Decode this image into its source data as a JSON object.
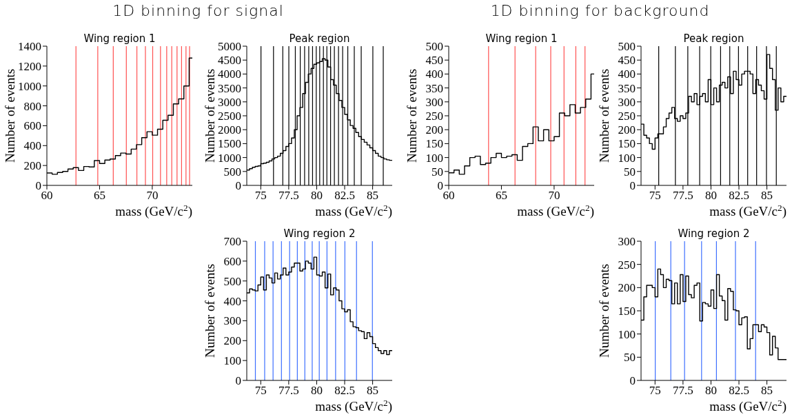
{
  "chart_data": [
    {
      "type": "histogram",
      "title": "Wing region 1",
      "xlabel": "mass (GeV/c$^{2}$)",
      "ylabel": "Number of events",
      "annotations": [
        "1D binning for signal"
      ],
      "color": "#000000",
      "bins": [
        60,
        60.5,
        61,
        61.5,
        62,
        62.5,
        63,
        63.5,
        64,
        64.5,
        65,
        65.5,
        66,
        66.5,
        67,
        67.5,
        68,
        68.5,
        69,
        69.5,
        70,
        70.5,
        71,
        71.5,
        72,
        72.5,
        73,
        73.5,
        73.8
      ],
      "values": [
        125,
        112,
        130,
        140,
        165,
        178,
        150,
        190,
        185,
        250,
        220,
        255,
        265,
        300,
        325,
        315,
        365,
        410,
        480,
        540,
        505,
        565,
        655,
        705,
        820,
        870,
        1000,
        1280
      ],
      "xlim": [
        60,
        73.8
      ],
      "xticks": [
        60,
        65,
        70
      ],
      "ylim": [
        0,
        1400
      ],
      "yticks": [
        0,
        200,
        400,
        600,
        800,
        1000,
        1200,
        1400
      ],
      "ref_lines": [
        {
          "axis": "x",
          "value": 62.76,
          "color": "#ff5050"
        },
        {
          "axis": "x",
          "value": 64.83,
          "color": "#ff5050"
        },
        {
          "axis": "x",
          "value": 66.3,
          "color": "#ff5050"
        },
        {
          "axis": "x",
          "value": 67.54,
          "color": "#ff5050"
        },
        {
          "axis": "x",
          "value": 68.54,
          "color": "#ff5050"
        },
        {
          "axis": "x",
          "value": 69.35,
          "color": "#ff5050"
        },
        {
          "axis": "x",
          "value": 70.04,
          "color": "#ff5050"
        },
        {
          "axis": "x",
          "value": 70.78,
          "color": "#ff5050"
        },
        {
          "axis": "x",
          "value": 71.37,
          "color": "#ff5050"
        },
        {
          "axis": "x",
          "value": 71.85,
          "color": "#ff5050"
        },
        {
          "axis": "x",
          "value": 72.35,
          "color": "#ff5050"
        },
        {
          "axis": "x",
          "value": 72.78,
          "color": "#ff5050"
        },
        {
          "axis": "x",
          "value": 73.2,
          "color": "#ff5050"
        },
        {
          "axis": "x",
          "value": 73.54,
          "color": "#ff5050"
        }
      ]
    },
    {
      "type": "histogram",
      "title": "Peak region",
      "xlabel": "mass (GeV/c$^{2}$)",
      "ylabel": "Number of events",
      "color": "#000000",
      "bins": [
        73.75,
        74,
        74.25,
        74.5,
        74.75,
        75,
        75.25,
        75.5,
        75.75,
        76,
        76.25,
        76.5,
        76.75,
        77,
        77.25,
        77.5,
        77.75,
        78,
        78.25,
        78.5,
        78.75,
        79,
        79.25,
        79.5,
        79.75,
        80,
        80.25,
        80.5,
        80.75,
        81,
        81.25,
        81.5,
        81.75,
        82,
        82.25,
        82.5,
        82.75,
        83,
        83.25,
        83.5,
        83.75,
        84,
        84.25,
        84.5,
        84.75,
        85,
        85.25,
        85.5,
        85.75,
        86,
        86.25,
        86.5,
        86.75
      ],
      "values": [
        550,
        600,
        650,
        680,
        700,
        780,
        800,
        830,
        880,
        950,
        1000,
        1050,
        1150,
        1250,
        1400,
        1500,
        1700,
        2000,
        2500,
        2800,
        3300,
        3700,
        4000,
        4200,
        4350,
        4400,
        4450,
        4550,
        4500,
        4250,
        3800,
        3600,
        3300,
        3050,
        2800,
        2550,
        2350,
        2150,
        2050,
        1900,
        1750,
        1650,
        1550,
        1450,
        1350,
        1250,
        1150,
        1050,
        1000,
        950,
        920,
        900
      ],
      "xlim": [
        73.75,
        86.75
      ],
      "xticks": [
        75,
        77.5,
        80,
        82.5,
        85
      ],
      "ylim": [
        0,
        5000
      ],
      "yticks": [
        0,
        500,
        1000,
        1500,
        2000,
        2500,
        3000,
        3500,
        4000,
        4500,
        5000
      ],
      "ref_lines": [
        {
          "axis": "x",
          "value": 75.02,
          "color": "#000000"
        },
        {
          "axis": "x",
          "value": 76.14,
          "color": "#000000"
        },
        {
          "axis": "x",
          "value": 76.97,
          "color": "#000000"
        },
        {
          "axis": "x",
          "value": 77.51,
          "color": "#000000"
        },
        {
          "axis": "x",
          "value": 78.09,
          "color": "#000000"
        },
        {
          "axis": "x",
          "value": 78.53,
          "color": "#000000"
        },
        {
          "axis": "x",
          "value": 78.92,
          "color": "#000000"
        },
        {
          "axis": "x",
          "value": 79.29,
          "color": "#000000"
        },
        {
          "axis": "x",
          "value": 79.63,
          "color": "#000000"
        },
        {
          "axis": "x",
          "value": 79.96,
          "color": "#000000"
        },
        {
          "axis": "x",
          "value": 80.27,
          "color": "#000000"
        },
        {
          "axis": "x",
          "value": 80.6,
          "color": "#000000"
        },
        {
          "axis": "x",
          "value": 80.91,
          "color": "#000000"
        },
        {
          "axis": "x",
          "value": 81.24,
          "color": "#000000"
        },
        {
          "axis": "x",
          "value": 81.58,
          "color": "#000000"
        },
        {
          "axis": "x",
          "value": 81.95,
          "color": "#000000"
        },
        {
          "axis": "x",
          "value": 82.32,
          "color": "#000000"
        },
        {
          "axis": "x",
          "value": 82.78,
          "color": "#000000"
        },
        {
          "axis": "x",
          "value": 83.36,
          "color": "#000000"
        },
        {
          "axis": "x",
          "value": 83.98,
          "color": "#000000"
        },
        {
          "axis": "x",
          "value": 85.02,
          "color": "#000000"
        },
        {
          "axis": "x",
          "value": 85.95,
          "color": "#000000"
        }
      ]
    },
    {
      "type": "histogram",
      "title": "Wing region 1",
      "xlabel": "mass (GeV/c$^{2}$)",
      "ylabel": "Number of events",
      "annotations": [
        "1D binning for background"
      ],
      "color": "#000000",
      "bins": [
        60,
        60.5,
        61,
        61.5,
        62,
        62.5,
        63,
        63.5,
        64,
        64.5,
        65,
        65.5,
        66,
        66.5,
        67,
        67.5,
        68,
        68.5,
        69,
        69.5,
        70,
        70.5,
        71,
        71.5,
        72,
        72.5,
        73,
        73.5,
        73.8
      ],
      "values": [
        45,
        55,
        40,
        70,
        100,
        105,
        75,
        80,
        100,
        115,
        100,
        105,
        110,
        90,
        140,
        150,
        210,
        160,
        200,
        160,
        175,
        260,
        250,
        290,
        260,
        280,
        310,
        400
      ],
      "xlim": [
        60,
        73.8
      ],
      "xticks": [
        60,
        65,
        70
      ],
      "ylim": [
        0,
        500
      ],
      "yticks": [
        0,
        50,
        100,
        150,
        200,
        250,
        300,
        350,
        400,
        450,
        500
      ],
      "ref_lines": [
        {
          "axis": "x",
          "value": 63.78,
          "color": "#ff5050"
        },
        {
          "axis": "x",
          "value": 66.29,
          "color": "#ff5050"
        },
        {
          "axis": "x",
          "value": 68.25,
          "color": "#ff5050"
        },
        {
          "axis": "x",
          "value": 69.68,
          "color": "#ff5050"
        },
        {
          "axis": "x",
          "value": 70.94,
          "color": "#ff5050"
        },
        {
          "axis": "x",
          "value": 72.06,
          "color": "#ff5050"
        },
        {
          "axis": "x",
          "value": 72.93,
          "color": "#ff5050"
        }
      ]
    },
    {
      "type": "histogram",
      "title": "Peak region",
      "xlabel": "mass (GeV/c$^{2}$)",
      "ylabel": "Number of events",
      "color": "#000000",
      "bins": [
        73.75,
        74,
        74.25,
        74.5,
        74.75,
        75,
        75.25,
        75.5,
        75.75,
        76,
        76.25,
        76.5,
        76.75,
        77,
        77.25,
        77.5,
        77.75,
        78,
        78.25,
        78.5,
        78.75,
        79,
        79.25,
        79.5,
        79.75,
        80,
        80.25,
        80.5,
        80.75,
        81,
        81.25,
        81.5,
        81.75,
        82,
        82.25,
        82.5,
        82.75,
        83,
        83.25,
        83.5,
        83.75,
        84,
        84.25,
        84.5,
        84.75,
        85,
        85.25,
        85.5,
        85.75,
        86,
        86.25,
        86.5,
        86.75
      ],
      "values": [
        220,
        180,
        170,
        150,
        130,
        170,
        185,
        185,
        210,
        240,
        260,
        280,
        240,
        230,
        250,
        240,
        260,
        320,
        300,
        330,
        290,
        320,
        330,
        300,
        380,
        290,
        350,
        300,
        360,
        370,
        350,
        390,
        330,
        410,
        380,
        360,
        400,
        410,
        410,
        400,
        330,
        380,
        360,
        340,
        310,
        470,
        420,
        380,
        270,
        350,
        300,
        320
      ],
      "xlim": [
        73.75,
        86.75
      ],
      "xticks": [
        75,
        77.5,
        80,
        82.5,
        85
      ],
      "ylim": [
        0,
        500
      ],
      "yticks": [
        0,
        50,
        100,
        150,
        200,
        250,
        300,
        350,
        400,
        450,
        500
      ],
      "ref_lines": [
        {
          "axis": "x",
          "value": 75.33,
          "color": "#000000"
        },
        {
          "axis": "x",
          "value": 76.82,
          "color": "#000000"
        },
        {
          "axis": "x",
          "value": 77.93,
          "color": "#000000"
        },
        {
          "axis": "x",
          "value": 78.99,
          "color": "#000000"
        },
        {
          "axis": "x",
          "value": 79.98,
          "color": "#000000"
        },
        {
          "axis": "x",
          "value": 80.86,
          "color": "#000000"
        },
        {
          "axis": "x",
          "value": 81.68,
          "color": "#000000"
        },
        {
          "axis": "x",
          "value": 82.46,
          "color": "#000000"
        },
        {
          "axis": "x",
          "value": 83.28,
          "color": "#000000"
        },
        {
          "axis": "x",
          "value": 84.08,
          "color": "#000000"
        },
        {
          "axis": "x",
          "value": 84.96,
          "color": "#000000"
        },
        {
          "axis": "x",
          "value": 85.84,
          "color": "#000000"
        }
      ]
    },
    {
      "type": "histogram",
      "title": "Wing region 2",
      "xlabel": "mass (GeV/c$^{2}$)",
      "ylabel": "Number of events",
      "color": "#000000",
      "bins": [
        73.75,
        74,
        74.25,
        74.5,
        74.75,
        75,
        75.25,
        75.5,
        75.75,
        76,
        76.25,
        76.5,
        76.75,
        77,
        77.25,
        77.5,
        77.75,
        78,
        78.25,
        78.5,
        78.75,
        79,
        79.25,
        79.5,
        79.75,
        80,
        80.25,
        80.5,
        80.75,
        81,
        81.25,
        81.5,
        81.75,
        82,
        82.25,
        82.5,
        82.75,
        83,
        83.25,
        83.5,
        83.75,
        84,
        84.25,
        84.5,
        84.75,
        85,
        85.25,
        85.5,
        85.75,
        86,
        86.25,
        86.5,
        86.75
      ],
      "values": [
        440,
        460,
        455,
        450,
        480,
        520,
        455,
        530,
        515,
        490,
        540,
        510,
        530,
        565,
        530,
        545,
        570,
        590,
        590,
        550,
        560,
        600,
        590,
        560,
        620,
        530,
        525,
        545,
        465,
        535,
        430,
        465,
        455,
        400,
        360,
        345,
        355,
        295,
        270,
        265,
        250,
        245,
        210,
        240,
        220,
        185,
        165,
        150,
        135,
        150,
        130,
        150
      ],
      "xlim": [
        73.75,
        86.75
      ],
      "xticks": [
        75,
        77.5,
        80,
        82.5,
        85
      ],
      "ylim": [
        0,
        700
      ],
      "yticks": [
        0,
        100,
        200,
        300,
        400,
        500,
        600,
        700
      ],
      "ref_lines": [
        {
          "axis": "x",
          "value": 74.52,
          "color": "#3d6fff"
        },
        {
          "axis": "x",
          "value": 75.35,
          "color": "#3d6fff"
        },
        {
          "axis": "x",
          "value": 76.1,
          "color": "#3d6fff"
        },
        {
          "axis": "x",
          "value": 76.85,
          "color": "#3d6fff"
        },
        {
          "axis": "x",
          "value": 77.58,
          "color": "#3d6fff"
        },
        {
          "axis": "x",
          "value": 78.27,
          "color": "#3d6fff"
        },
        {
          "axis": "x",
          "value": 78.94,
          "color": "#3d6fff"
        },
        {
          "axis": "x",
          "value": 79.6,
          "color": "#3d6fff"
        },
        {
          "axis": "x",
          "value": 80.23,
          "color": "#3d6fff"
        },
        {
          "axis": "x",
          "value": 80.92,
          "color": "#3d6fff"
        },
        {
          "axis": "x",
          "value": 81.69,
          "color": "#3d6fff"
        },
        {
          "axis": "x",
          "value": 82.52,
          "color": "#3d6fff"
        },
        {
          "axis": "x",
          "value": 83.56,
          "color": "#3d6fff"
        },
        {
          "axis": "x",
          "value": 84.98,
          "color": "#3d6fff"
        }
      ]
    },
    {
      "type": "histogram",
      "title": "Wing region 2",
      "xlabel": "mass (GeV/c$^{2}$)",
      "ylabel": "Number of events",
      "color": "#000000",
      "bins": [
        73.75,
        74,
        74.25,
        74.5,
        74.75,
        75,
        75.25,
        75.5,
        75.75,
        76,
        76.25,
        76.5,
        76.75,
        77,
        77.25,
        77.5,
        77.75,
        78,
        78.25,
        78.5,
        78.75,
        79,
        79.25,
        79.5,
        79.75,
        80,
        80.25,
        80.5,
        80.75,
        81,
        81.25,
        81.5,
        81.75,
        82,
        82.25,
        82.5,
        82.75,
        83,
        83.25,
        83.5,
        83.75,
        84,
        84.25,
        84.5,
        84.75,
        85,
        85.25,
        85.5,
        85.75,
        86,
        86.25,
        86.5,
        86.75
      ],
      "values": [
        130,
        180,
        205,
        205,
        200,
        180,
        240,
        228,
        200,
        218,
        215,
        165,
        210,
        165,
        228,
        170,
        225,
        185,
        178,
        205,
        210,
        128,
        168,
        165,
        160,
        195,
        155,
        228,
        182,
        172,
        130,
        198,
        192,
        152,
        150,
        120,
        135,
        137,
        68,
        90,
        120,
        120,
        105,
        120,
        115,
        103,
        55,
        95,
        70,
        45,
        45,
        45
      ],
      "xlim": [
        73.75,
        86.75
      ],
      "xticks": [
        75,
        77.5,
        80,
        82.5,
        85
      ],
      "ylim": [
        0,
        300
      ],
      "yticks": [
        0,
        50,
        100,
        150,
        200,
        250,
        300
      ],
      "ref_lines": [
        {
          "axis": "x",
          "value": 75.02,
          "color": "#3d6fff"
        },
        {
          "axis": "x",
          "value": 76.41,
          "color": "#3d6fff"
        },
        {
          "axis": "x",
          "value": 77.64,
          "color": "#3d6fff"
        },
        {
          "axis": "x",
          "value": 79.16,
          "color": "#3d6fff"
        },
        {
          "axis": "x",
          "value": 80.49,
          "color": "#3d6fff"
        },
        {
          "axis": "x",
          "value": 82.19,
          "color": "#3d6fff"
        },
        {
          "axis": "x",
          "value": 83.99,
          "color": "#3d6fff"
        }
      ]
    }
  ]
}
